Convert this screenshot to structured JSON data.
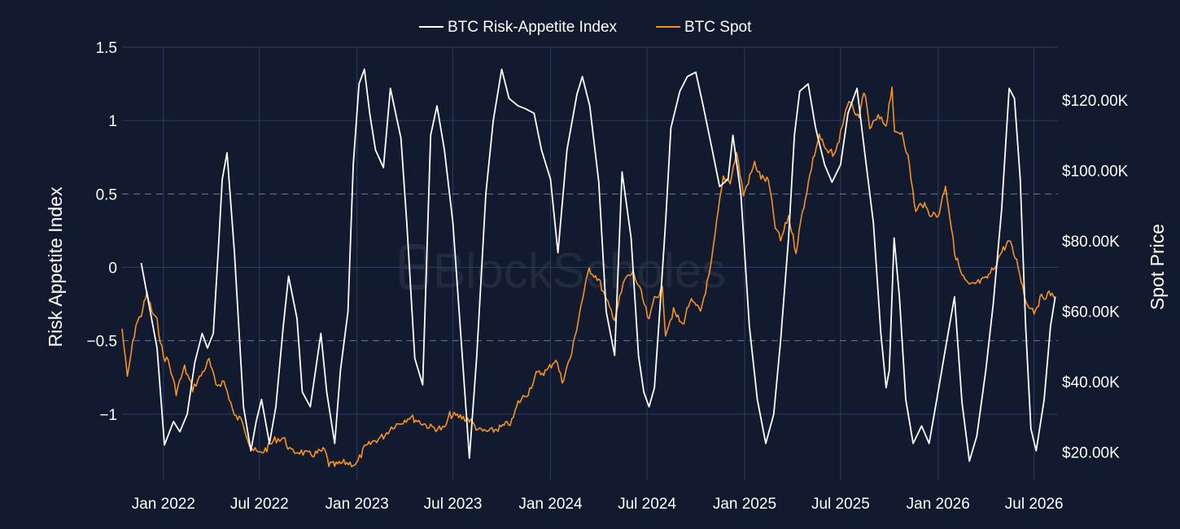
{
  "watermark": "BlockScholes",
  "colors": {
    "background": "#111a2e",
    "grid": "#2e3c5c",
    "index_line": "#ffffff",
    "spot_line": "#f7931a"
  },
  "chart_data": {
    "type": "line",
    "title": "",
    "legend": {
      "placement": "top-center",
      "entries": [
        "BTC Risk-Appetite Index",
        "BTC Spot"
      ]
    },
    "grid": true,
    "x_ticks": [
      "2022-01-01",
      "2022-07-01",
      "2023-01-01",
      "2023-07-01",
      "2024-01-01",
      "2024-07-01",
      "2025-01-01",
      "2025-07-01",
      "2026-01-01",
      "2026-07-01"
    ],
    "x_tick_labels": [
      "Jan 2022",
      "Jul 2022",
      "Jan 2023",
      "Jul 2023",
      "Jan 2024",
      "Jul 2024",
      "Jan 2025",
      "Jul 2025",
      "Jan 2026",
      "Jul 2026"
    ],
    "xlim": [
      "2021-10-15",
      "2026-08-15"
    ],
    "y_left": {
      "label": "Risk Appetite Index",
      "range": [
        -1.45,
        1.5
      ],
      "ticks": [
        1.5,
        1,
        0.5,
        0,
        -0.5,
        -1
      ],
      "tick_labels": [
        "1.5",
        "1",
        "0.5",
        "0",
        "−0.5",
        "−1"
      ],
      "dashed_reference_lines": [
        0.5,
        -0.5
      ]
    },
    "y_right": {
      "label": "Spot Price",
      "range": [
        12000,
        135000
      ],
      "ticks": [
        120000,
        100000,
        80000,
        60000,
        40000,
        20000
      ],
      "tick_labels": [
        "$120.00K",
        "$100.00K",
        "$80.00K",
        "$60.00K",
        "$40.00K",
        "$20.00K"
      ]
    },
    "series": [
      {
        "name": "BTC Risk-Appetite Index",
        "axis": "left",
        "x": [
          "2021-11-20",
          "2021-12-20",
          "2022-01-03",
          "2022-01-20",
          "2022-02-01",
          "2022-02-15",
          "2022-03-01",
          "2022-03-15",
          "2022-03-25",
          "2022-04-05",
          "2022-04-15",
          "2022-04-22",
          "2022-05-01",
          "2022-05-15",
          "2022-06-01",
          "2022-06-15",
          "2022-06-25",
          "2022-07-05",
          "2022-07-20",
          "2022-08-01",
          "2022-08-15",
          "2022-08-25",
          "2022-09-10",
          "2022-09-20",
          "2022-10-05",
          "2022-10-15",
          "2022-10-25",
          "2022-11-05",
          "2022-11-20",
          "2022-12-01",
          "2022-12-15",
          "2022-12-25",
          "2023-01-05",
          "2023-01-15",
          "2023-01-25",
          "2023-02-05",
          "2023-02-20",
          "2023-03-05",
          "2023-03-15",
          "2023-03-25",
          "2023-04-05",
          "2023-04-20",
          "2023-05-05",
          "2023-05-20",
          "2023-06-01",
          "2023-06-15",
          "2023-07-01",
          "2023-07-20",
          "2023-08-01",
          "2023-08-15",
          "2023-09-01",
          "2023-09-15",
          "2023-10-01",
          "2023-10-15",
          "2023-11-01",
          "2023-11-15",
          "2023-12-01",
          "2023-12-15",
          "2024-01-01",
          "2024-01-15",
          "2024-02-01",
          "2024-02-20",
          "2024-03-01",
          "2024-03-15",
          "2024-04-01",
          "2024-04-15",
          "2024-05-01",
          "2024-05-15",
          "2024-06-01",
          "2024-06-15",
          "2024-06-25",
          "2024-07-05",
          "2024-07-15",
          "2024-07-25",
          "2024-08-05",
          "2024-08-15",
          "2024-09-01",
          "2024-09-15",
          "2024-10-01",
          "2024-10-15",
          "2024-11-01",
          "2024-11-15",
          "2024-12-01",
          "2024-12-10",
          "2024-12-25",
          "2025-01-10",
          "2025-01-25",
          "2025-02-10",
          "2025-02-25",
          "2025-03-10",
          "2025-03-25",
          "2025-04-05",
          "2025-04-15",
          "2025-05-01",
          "2025-05-15",
          "2025-06-01",
          "2025-06-15",
          "2025-07-01",
          "2025-07-15",
          "2025-08-01",
          "2025-08-15",
          "2025-09-01",
          "2025-09-15",
          "2025-09-25",
          "2025-10-01",
          "2025-10-10",
          "2025-10-20",
          "2025-11-01",
          "2025-11-15",
          "2025-12-01",
          "2025-12-15",
          "2026-01-01",
          "2026-01-15",
          "2026-02-01",
          "2026-02-15",
          "2026-03-01",
          "2026-03-15",
          "2026-04-01",
          "2026-04-15",
          "2026-05-01",
          "2026-05-15",
          "2026-05-25",
          "2026-06-05",
          "2026-06-15",
          "2026-06-25",
          "2026-07-05",
          "2026-07-20",
          "2026-08-01",
          "2026-08-10"
        ],
        "values": [
          0.03,
          -0.55,
          -1.21,
          -1.05,
          -1.12,
          -1.0,
          -0.65,
          -0.45,
          -0.55,
          -0.45,
          0.15,
          0.6,
          0.78,
          0.1,
          -0.95,
          -1.25,
          -1.05,
          -0.9,
          -1.2,
          -0.95,
          -0.4,
          -0.06,
          -0.35,
          -0.85,
          -0.95,
          -0.7,
          -0.45,
          -0.85,
          -1.2,
          -0.7,
          -0.3,
          0.7,
          1.25,
          1.35,
          1.05,
          0.8,
          0.68,
          1.22,
          1.05,
          0.88,
          0.3,
          -0.62,
          -0.8,
          0.9,
          1.1,
          0.8,
          0.3,
          -0.68,
          -1.3,
          -0.6,
          0.5,
          1.0,
          1.35,
          1.15,
          1.1,
          1.08,
          1.05,
          0.8,
          0.6,
          0.1,
          0.8,
          1.18,
          1.3,
          1.1,
          0.58,
          -0.3,
          -0.6,
          0.65,
          0.2,
          -0.6,
          -0.85,
          -0.95,
          -0.82,
          -0.3,
          0.3,
          0.95,
          1.2,
          1.3,
          1.33,
          1.1,
          0.8,
          0.55,
          0.6,
          0.9,
          0.5,
          -0.4,
          -0.9,
          -1.2,
          -1.0,
          -0.5,
          0.2,
          0.9,
          1.2,
          1.25,
          0.95,
          0.7,
          0.58,
          0.7,
          1.05,
          1.22,
          0.8,
          0.3,
          -0.45,
          -0.82,
          -0.7,
          0.2,
          -0.2,
          -0.9,
          -1.2,
          -1.08,
          -1.2,
          -0.85,
          -0.55,
          -0.2,
          -0.92,
          -1.32,
          -1.15,
          -0.7,
          -0.25,
          0.4,
          1.22,
          1.15,
          0.6,
          -0.4,
          -1.1,
          -1.25,
          -0.9,
          -0.4,
          -0.2
        ]
      },
      {
        "name": "BTC Spot",
        "axis": "right",
        "x": [
          "2021-10-15",
          "2021-10-25",
          "2021-11-01",
          "2021-11-10",
          "2021-11-20",
          "2021-12-01",
          "2021-12-10",
          "2021-12-20",
          "2022-01-01",
          "2022-01-10",
          "2022-01-25",
          "2022-02-10",
          "2022-02-25",
          "2022-03-10",
          "2022-03-28",
          "2022-04-10",
          "2022-04-25",
          "2022-05-08",
          "2022-05-15",
          "2022-05-30",
          "2022-06-13",
          "2022-06-20",
          "2022-07-01",
          "2022-07-15",
          "2022-07-30",
          "2022-08-15",
          "2022-08-30",
          "2022-09-15",
          "2022-10-01",
          "2022-10-15",
          "2022-11-01",
          "2022-11-09",
          "2022-11-20",
          "2022-12-10",
          "2022-12-31",
          "2023-01-15",
          "2023-02-01",
          "2023-02-20",
          "2023-03-10",
          "2023-03-20",
          "2023-04-10",
          "2023-05-01",
          "2023-05-20",
          "2023-06-15",
          "2023-06-25",
          "2023-07-15",
          "2023-08-01",
          "2023-08-20",
          "2023-09-10",
          "2023-09-30",
          "2023-10-20",
          "2023-11-01",
          "2023-11-20",
          "2023-12-05",
          "2023-12-25",
          "2024-01-11",
          "2024-01-23",
          "2024-02-10",
          "2024-02-28",
          "2024-03-14",
          "2024-04-01",
          "2024-04-15",
          "2024-05-01",
          "2024-05-20",
          "2024-06-05",
          "2024-06-20",
          "2024-07-05",
          "2024-07-15",
          "2024-07-30",
          "2024-08-05",
          "2024-08-20",
          "2024-09-06",
          "2024-09-20",
          "2024-10-10",
          "2024-10-29",
          "2024-11-12",
          "2024-11-22",
          "2024-12-05",
          "2024-12-17",
          "2024-12-30",
          "2025-01-20",
          "2025-02-01",
          "2025-02-15",
          "2025-02-28",
          "2025-03-10",
          "2025-03-25",
          "2025-04-08",
          "2025-04-20",
          "2025-05-10",
          "2025-05-22",
          "2025-06-05",
          "2025-06-22",
          "2025-07-14",
          "2025-07-25",
          "2025-08-05",
          "2025-08-14",
          "2025-08-25",
          "2025-09-10",
          "2025-09-25",
          "2025-10-06",
          "2025-10-11",
          "2025-10-25",
          "2025-11-05",
          "2025-11-20",
          "2025-12-01",
          "2025-12-15",
          "2026-01-01",
          "2026-01-15",
          "2026-02-01",
          "2026-02-15",
          "2026-03-01",
          "2026-03-15",
          "2026-04-01",
          "2026-04-15",
          "2026-05-01",
          "2026-05-15",
          "2026-06-01",
          "2026-06-15",
          "2026-07-01",
          "2026-07-15",
          "2026-08-01",
          "2026-08-10"
        ],
        "values": [
          55000,
          41000,
          48000,
          56000,
          59000,
          65000,
          60000,
          57000,
          47000,
          46000,
          37000,
          44000,
          38000,
          41000,
          46000,
          39000,
          40000,
          34000,
          30000,
          29000,
          22000,
          20500,
          19500,
          21000,
          23500,
          24000,
          20000,
          20200,
          19200,
          19500,
          20500,
          16500,
          16200,
          17000,
          16500,
          21000,
          23000,
          24500,
          27500,
          28000,
          30000,
          28500,
          27000,
          26500,
          30500,
          30000,
          29200,
          26000,
          25800,
          27000,
          28500,
          34000,
          37000,
          42000,
          43000,
          46500,
          40000,
          48000,
          62000,
          72000,
          69000,
          63000,
          58000,
          69000,
          71000,
          65000,
          57000,
          64000,
          66000,
          54000,
          60000,
          56000,
          63000,
          60000,
          72000,
          88000,
          98000,
          97000,
          105000,
          93000,
          102000,
          98000,
          97000,
          84000,
          80000,
          87000,
          77000,
          88000,
          103000,
          110000,
          105000,
          105000,
          119000,
          118000,
          114000,
          123000,
          112000,
          115000,
          113000,
          124000,
          110000,
          111000,
          104000,
          88000,
          91000,
          88000,
          87000,
          96000,
          77000,
          70000,
          67000,
          68000,
          69000,
          72000,
          77000,
          80000,
          73000,
          63000,
          60000,
          64000,
          65000,
          64000
        ]
      }
    ]
  }
}
